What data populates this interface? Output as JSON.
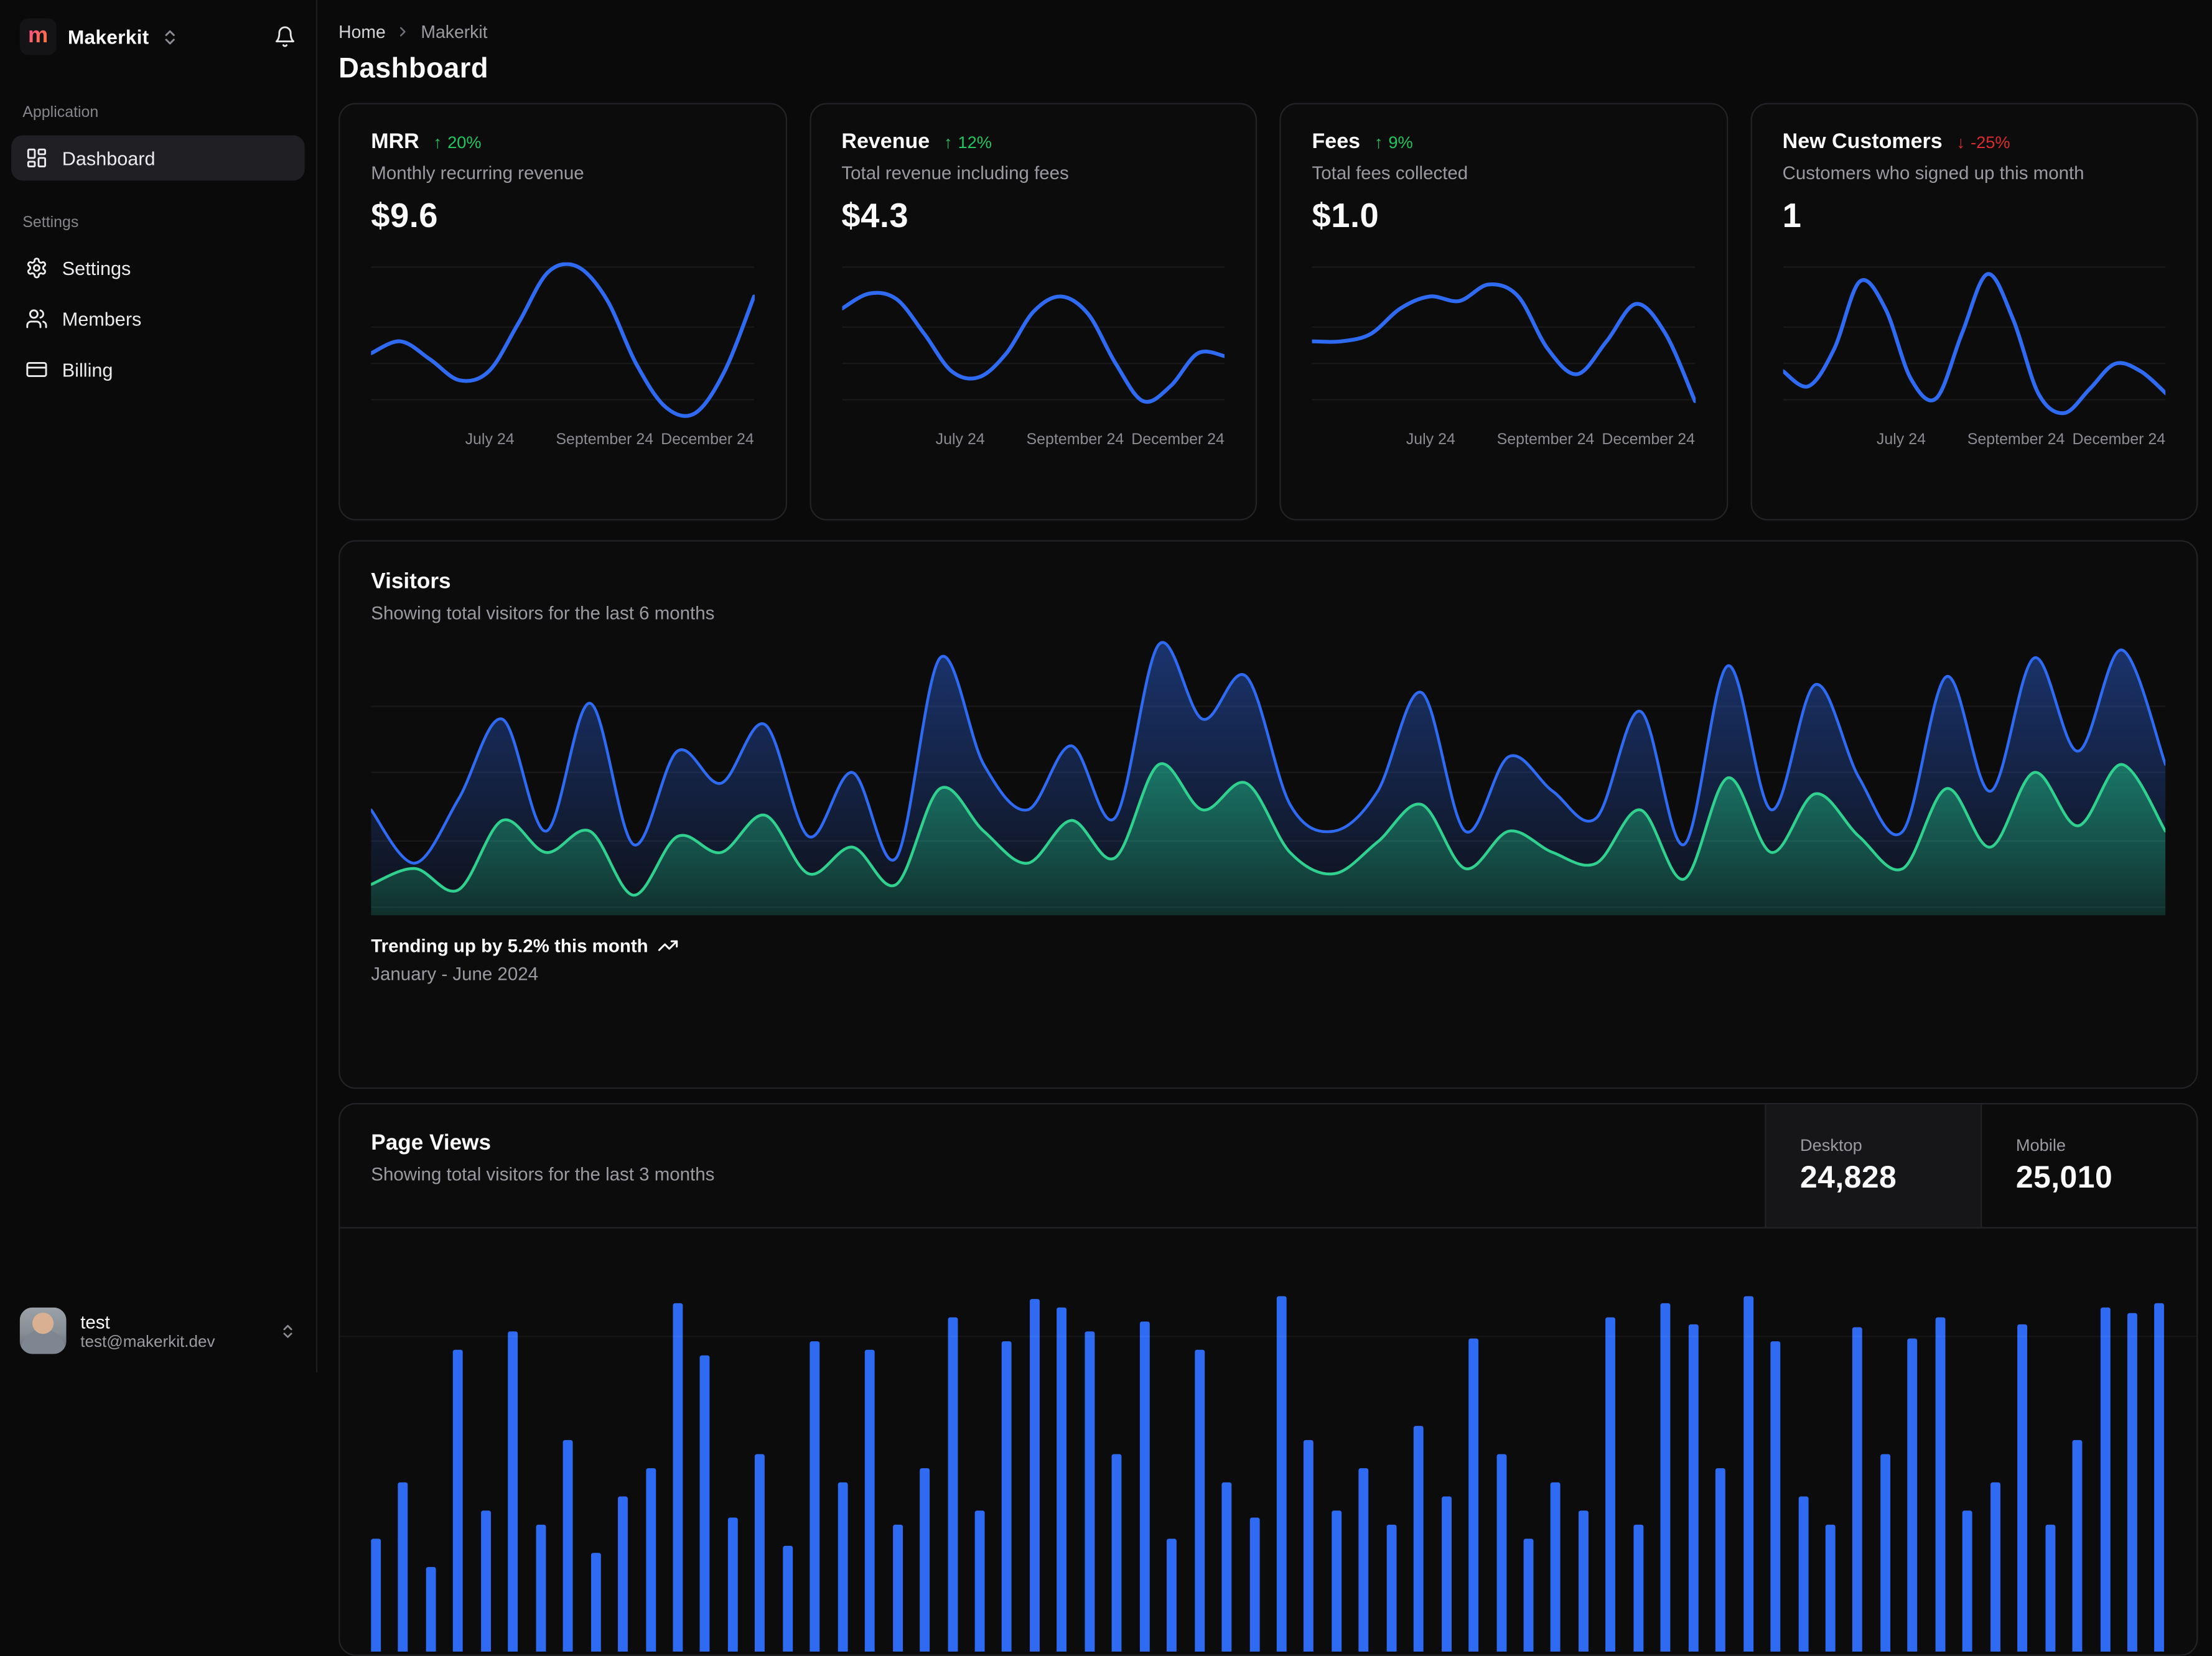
{
  "sidebar": {
    "brand": {
      "name": "Makerkit",
      "logo_letter": "m"
    },
    "sections": [
      {
        "label": "Application",
        "items": [
          {
            "label": "Dashboard"
          }
        ]
      },
      {
        "label": "Settings",
        "items": [
          {
            "label": "Settings"
          },
          {
            "label": "Members"
          },
          {
            "label": "Billing"
          }
        ]
      }
    ],
    "user": {
      "name": "test",
      "email": "test@makerkit.dev"
    }
  },
  "header": {
    "breadcrumb": {
      "home": "Home",
      "current": "Makerkit"
    },
    "title": "Dashboard"
  },
  "stat_cards": [
    {
      "title": "MRR",
      "trend": {
        "arrow": "↑",
        "value": "20%",
        "direction": "up"
      },
      "subtitle": "Monthly recurring revenue",
      "value": "$9.6"
    },
    {
      "title": "Revenue",
      "trend": {
        "arrow": "↑",
        "value": "12%",
        "direction": "up"
      },
      "subtitle": "Total revenue including fees",
      "value": "$4.3"
    },
    {
      "title": "Fees",
      "trend": {
        "arrow": "↑",
        "value": "9%",
        "direction": "up"
      },
      "subtitle": "Total fees collected",
      "value": "$1.0"
    },
    {
      "title": "New Customers",
      "trend": {
        "arrow": "↓",
        "value": "-25%",
        "direction": "down"
      },
      "subtitle": "Customers who signed up this month",
      "value": "1"
    }
  ],
  "visitors": {
    "title": "Visitors",
    "subtitle": "Showing total visitors for the last 6 months",
    "footer_title": "Trending up by 5.2% this month",
    "footer_subtitle": "January - June 2024"
  },
  "page_views": {
    "title": "Page Views",
    "subtitle": "Showing total visitors for the last 3 months",
    "stats": [
      {
        "label": "Desktop",
        "value": "24,828"
      },
      {
        "label": "Mobile",
        "value": "25,010"
      }
    ]
  },
  "colors": {
    "accent_blue": "#2e6bf2",
    "accent_green": "#30d08e",
    "trend_up": "#22c55e",
    "trend_down": "#d92d2d"
  },
  "chart_data": [
    {
      "type": "line",
      "name": "mrr-spark",
      "title": "MRR",
      "x_ticks": [
        "July 24",
        "September 24",
        "December 24"
      ],
      "grid": [
        0.03,
        0.41,
        0.64,
        0.87
      ],
      "points": [
        0.42,
        0.5,
        0.38,
        0.24,
        0.3,
        0.62,
        0.96,
        1.0,
        0.78,
        0.35,
        0.06,
        0.02,
        0.3,
        0.8
      ]
    },
    {
      "type": "line",
      "name": "revenue-spark",
      "title": "Revenue",
      "x_ticks": [
        "July 24",
        "September 24",
        "December 24"
      ],
      "grid": [
        0.03,
        0.41,
        0.64,
        0.87
      ],
      "points": [
        0.72,
        0.82,
        0.78,
        0.55,
        0.3,
        0.26,
        0.42,
        0.7,
        0.8,
        0.68,
        0.35,
        0.1,
        0.2,
        0.42,
        0.4
      ]
    },
    {
      "type": "line",
      "name": "fees-spark",
      "title": "Fees",
      "x_ticks": [
        "July 24",
        "September 24",
        "December 24"
      ],
      "grid": [
        0.03,
        0.41,
        0.64,
        0.87
      ],
      "points": [
        0.5,
        0.5,
        0.55,
        0.72,
        0.8,
        0.77,
        0.88,
        0.8,
        0.45,
        0.28,
        0.5,
        0.75,
        0.55,
        0.1
      ]
    },
    {
      "type": "line",
      "name": "customers-spark",
      "title": "New Customers",
      "x_ticks": [
        "July 24",
        "September 24",
        "December 24"
      ],
      "grid": [
        0.03,
        0.41,
        0.64,
        0.87
      ],
      "points": [
        0.3,
        0.2,
        0.45,
        0.9,
        0.72,
        0.25,
        0.12,
        0.55,
        0.95,
        0.65,
        0.15,
        0.02,
        0.18,
        0.35,
        0.3,
        0.15
      ]
    },
    {
      "type": "area",
      "name": "visitors",
      "title": "Visitors",
      "x_range": "January - June 2024",
      "grid": [
        0.24,
        0.48,
        0.73,
        0.97
      ],
      "series": [
        {
          "name": "Desktop",
          "values": [
            0.38,
            0.18,
            0.42,
            0.72,
            0.3,
            0.78,
            0.25,
            0.6,
            0.48,
            0.7,
            0.28,
            0.52,
            0.2,
            0.95,
            0.55,
            0.38,
            0.62,
            0.35,
            1.0,
            0.72,
            0.88,
            0.4,
            0.3,
            0.45,
            0.82,
            0.3,
            0.58,
            0.45,
            0.35,
            0.75,
            0.25,
            0.92,
            0.38,
            0.85,
            0.5,
            0.3,
            0.88,
            0.45,
            0.95,
            0.6,
            0.98,
            0.55
          ]
        },
        {
          "name": "Mobile",
          "values": [
            0.1,
            0.16,
            0.08,
            0.34,
            0.22,
            0.3,
            0.06,
            0.28,
            0.22,
            0.36,
            0.14,
            0.24,
            0.1,
            0.46,
            0.3,
            0.18,
            0.34,
            0.2,
            0.55,
            0.38,
            0.48,
            0.22,
            0.14,
            0.26,
            0.4,
            0.16,
            0.3,
            0.22,
            0.18,
            0.38,
            0.12,
            0.5,
            0.22,
            0.44,
            0.28,
            0.16,
            0.46,
            0.24,
            0.52,
            0.32,
            0.55,
            0.3
          ]
        }
      ]
    },
    {
      "type": "bar",
      "name": "page-views",
      "title": "Page Views",
      "values": [
        80,
        120,
        60,
        214,
        100,
        227,
        90,
        150,
        70,
        110,
        130,
        247,
        210,
        95,
        140,
        75,
        220,
        120,
        214,
        90,
        130,
        237,
        100,
        220,
        250,
        244,
        227,
        140,
        234,
        80,
        214,
        120,
        95,
        252,
        150,
        100,
        130,
        90,
        160,
        110,
        222,
        140,
        80,
        120,
        100,
        237,
        90,
        247,
        232,
        130,
        252,
        220,
        110,
        90,
        230,
        140,
        222,
        237,
        100,
        120,
        232,
        90,
        150,
        244,
        240,
        247
      ]
    }
  ]
}
